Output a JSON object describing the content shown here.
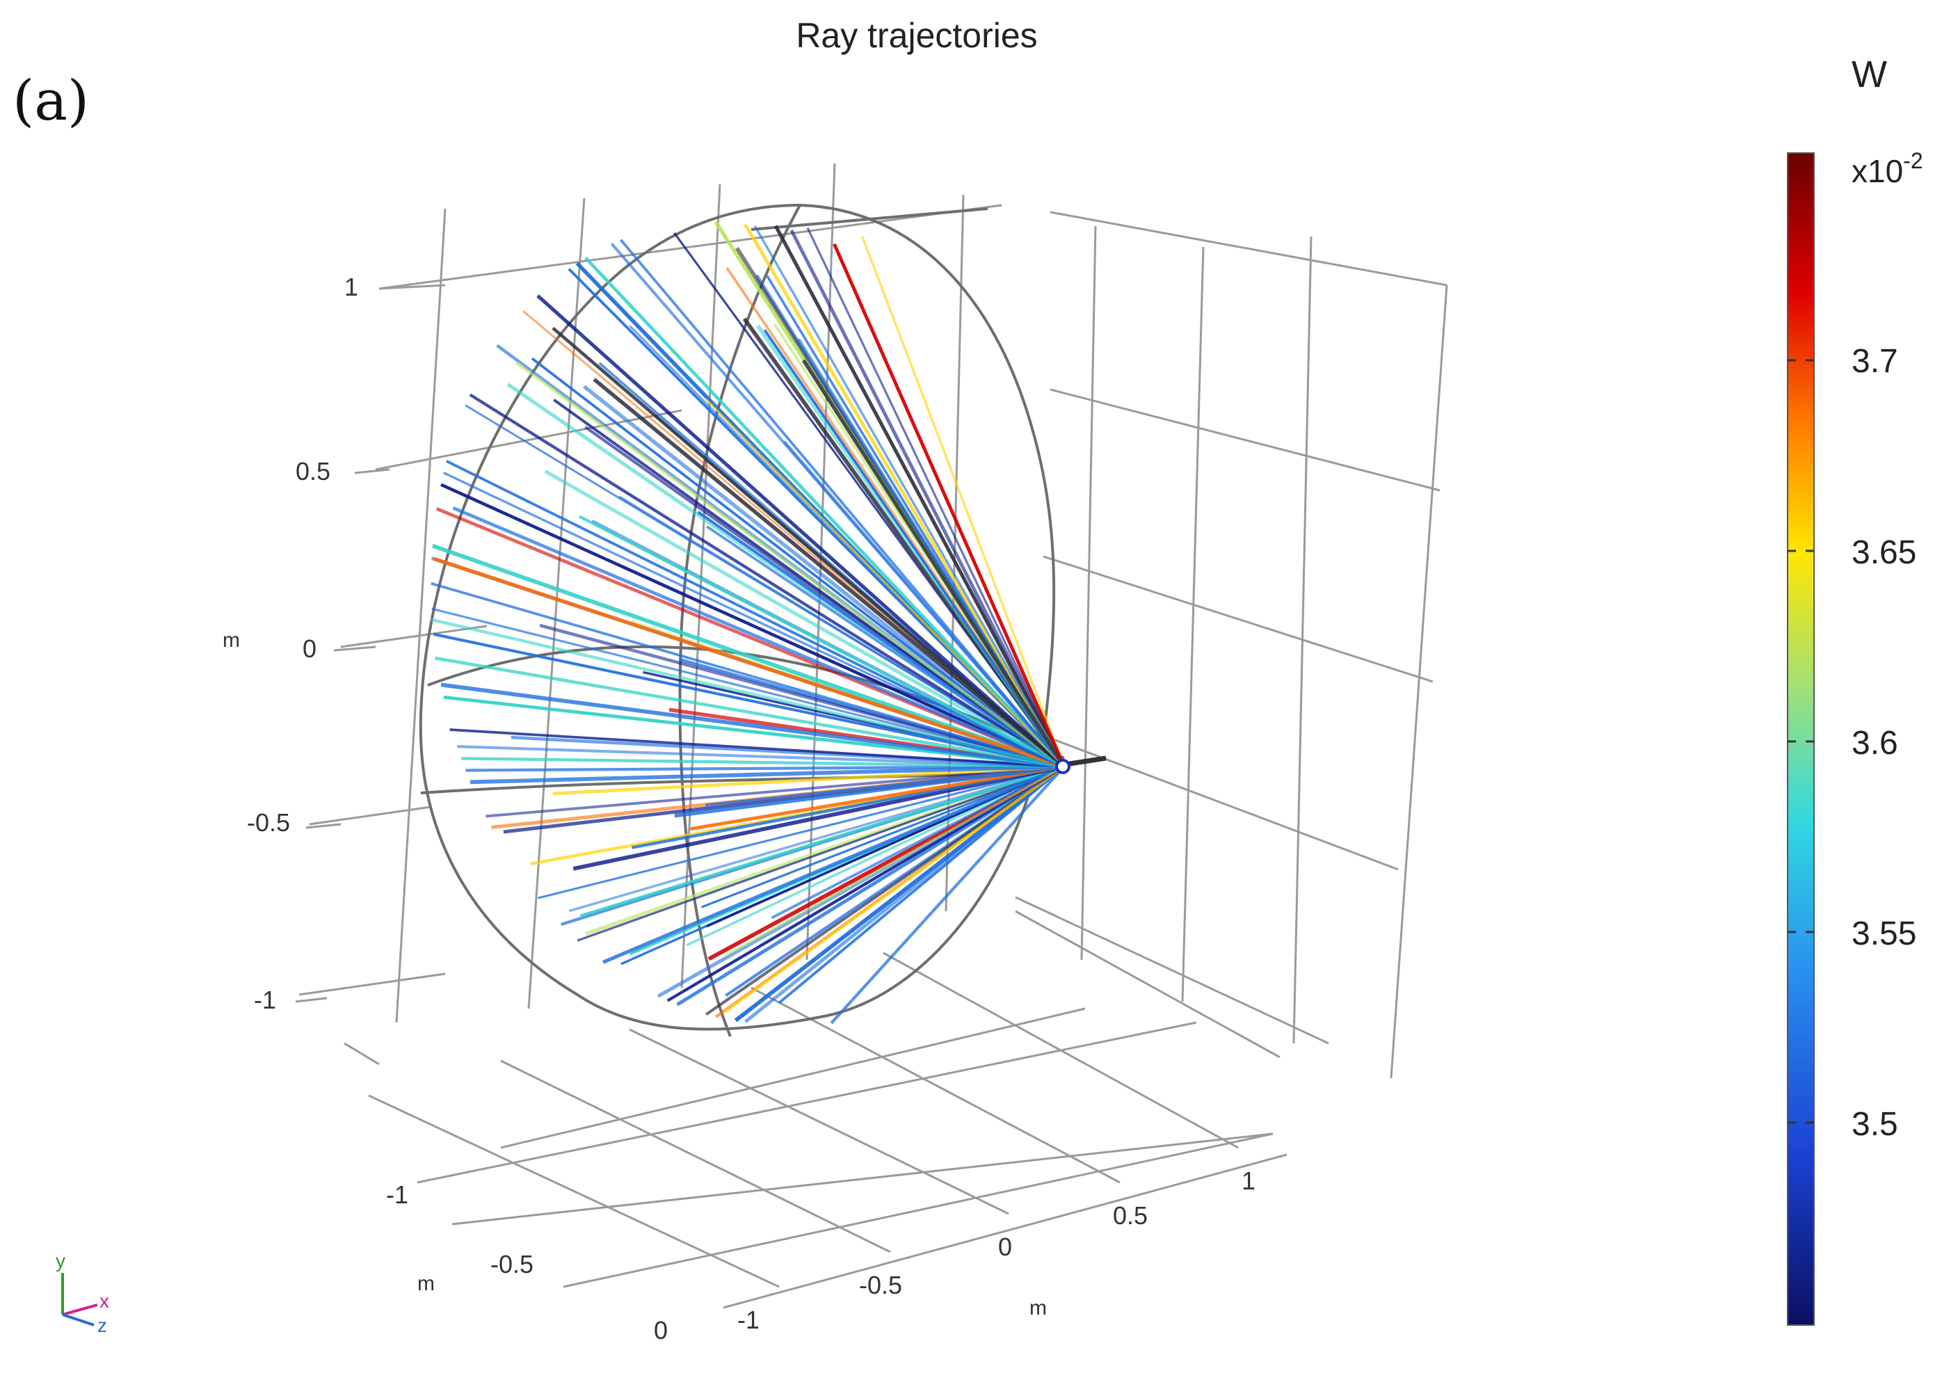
{
  "figure": {
    "panel_label": "(a)",
    "title": "Ray trajectories"
  },
  "axes": {
    "y_ticks": [
      "1",
      "0.5",
      "0",
      "-0.5",
      "-1"
    ],
    "y_unit": "m",
    "x_ticks": [
      "-1",
      "-0.5",
      "0",
      "0.5",
      "1"
    ],
    "x_unit": "m",
    "z_ticks": [
      "-1",
      "-0.5",
      "0"
    ],
    "z_unit": "m"
  },
  "colorbar": {
    "unit": "W",
    "multiplier": "x10",
    "exponent": "-2",
    "ticks": [
      "3.7",
      "3.65",
      "3.6",
      "3.55",
      "3.5"
    ],
    "colors": [
      "#7a0000",
      "#d40000",
      "#ff6a00",
      "#ffd400",
      "#b6e35a",
      "#32d2c8",
      "#1f6fe0",
      "#0b1a8c"
    ]
  },
  "triad": {
    "x": "x",
    "y": "y",
    "z": "z"
  }
}
